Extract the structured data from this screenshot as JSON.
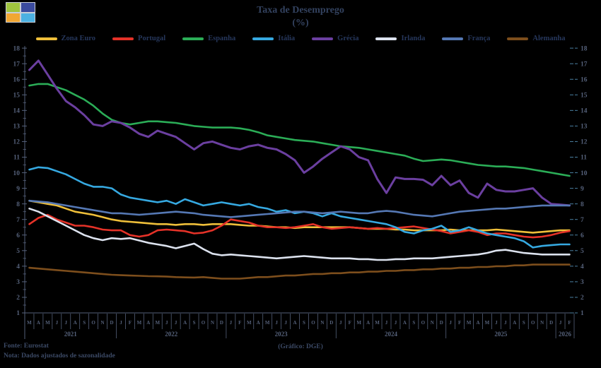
{
  "logo": {
    "colors": {
      "top_left": "#9fc43e",
      "top_right": "#3b4b9f",
      "bottom_left": "#f1a733",
      "bottom_right": "#4cb1e2"
    }
  },
  "title": {
    "line1": "Taxa de Desemprego",
    "line2": "(%)"
  },
  "colors": {
    "background": "#000000",
    "text": "#55617a",
    "title_text": "#33425f",
    "legend_text": "#26375c",
    "right_axis_text": "#4a7fa0"
  },
  "footer": {
    "source": "Fonte: Eurostat",
    "note": "Nota: Dados ajustados de sazonalidade",
    "credit": "(Gráfico: DGE)"
  },
  "chart_data": {
    "type": "line",
    "title": "Taxa de Desemprego (%)",
    "ylabel": "",
    "xlabel": "",
    "ylim": [
      1,
      18
    ],
    "y_tick_step": 1,
    "grid": false,
    "legend_position": "top",
    "x_months": [
      "M",
      "A",
      "M",
      "J",
      "J",
      "A",
      "S",
      "O",
      "N",
      "D",
      "J",
      "F",
      "M",
      "A",
      "M",
      "J",
      "J",
      "A",
      "S",
      "O",
      "N",
      "D",
      "J",
      "F",
      "M",
      "A",
      "M",
      "J",
      "J",
      "A",
      "S",
      "O",
      "N",
      "D",
      "J",
      "F",
      "M",
      "A",
      "M",
      "J",
      "J",
      "A",
      "S",
      "O",
      "N",
      "D",
      "J",
      "F",
      "M",
      "A",
      "M",
      "J",
      "J",
      "A",
      "S",
      "O",
      "N",
      "D",
      "J",
      "F"
    ],
    "years": [
      {
        "label": "2021",
        "from": 0,
        "to": 9
      },
      {
        "label": "2022",
        "from": 10,
        "to": 21
      },
      {
        "label": "2023",
        "from": 22,
        "to": 33
      },
      {
        "label": "2024",
        "from": 34,
        "to": 45
      },
      {
        "label": "2025",
        "from": 46,
        "to": 57
      },
      {
        "label": "2026",
        "from": 58,
        "to": 59
      }
    ],
    "series": [
      {
        "name": "Zona Euro",
        "color": "#efbf3a",
        "values": [
          8.2,
          8.1,
          8.0,
          7.9,
          7.7,
          7.5,
          7.4,
          7.3,
          7.15,
          7.0,
          6.9,
          6.85,
          6.8,
          6.75,
          6.7,
          6.7,
          6.65,
          6.7,
          6.7,
          6.65,
          6.7,
          6.7,
          6.7,
          6.65,
          6.6,
          6.6,
          6.55,
          6.5,
          6.5,
          6.45,
          6.5,
          6.5,
          6.5,
          6.5,
          6.5,
          6.5,
          6.45,
          6.4,
          6.4,
          6.4,
          6.35,
          6.35,
          6.3,
          6.3,
          6.3,
          6.3,
          6.35,
          6.3,
          6.3,
          6.3,
          6.3,
          6.35,
          6.3,
          6.25,
          6.2,
          6.15,
          6.2,
          6.25,
          6.3,
          6.3
        ]
      },
      {
        "name": "Portugal",
        "color": "#e53228",
        "values": [
          6.7,
          7.1,
          7.3,
          7.0,
          6.8,
          6.6,
          6.6,
          6.5,
          6.35,
          6.3,
          6.3,
          6.0,
          5.9,
          6.0,
          6.3,
          6.35,
          6.3,
          6.25,
          6.1,
          6.15,
          6.3,
          6.6,
          7.0,
          6.9,
          6.8,
          6.6,
          6.5,
          6.5,
          6.45,
          6.5,
          6.6,
          6.7,
          6.5,
          6.4,
          6.45,
          6.5,
          6.45,
          6.4,
          6.45,
          6.4,
          6.45,
          6.5,
          6.55,
          6.45,
          6.35,
          6.25,
          6.1,
          6.2,
          6.3,
          6.2,
          6.0,
          6.1,
          6.1,
          6.0,
          5.9,
          5.85,
          5.9,
          6.0,
          6.15,
          6.25
        ]
      },
      {
        "name": "Espanha",
        "color": "#2bad57",
        "values": [
          15.6,
          15.7,
          15.7,
          15.5,
          15.3,
          15.0,
          14.7,
          14.3,
          13.8,
          13.4,
          13.2,
          13.1,
          13.2,
          13.3,
          13.3,
          13.25,
          13.2,
          13.1,
          13.0,
          12.95,
          12.9,
          12.9,
          12.9,
          12.85,
          12.75,
          12.6,
          12.4,
          12.3,
          12.2,
          12.1,
          12.05,
          12.0,
          11.9,
          11.8,
          11.7,
          11.65,
          11.6,
          11.5,
          11.4,
          11.3,
          11.2,
          11.1,
          10.9,
          10.75,
          10.8,
          10.85,
          10.8,
          10.7,
          10.6,
          10.5,
          10.45,
          10.4,
          10.4,
          10.35,
          10.3,
          10.2,
          10.1,
          10.0,
          9.9,
          9.8
        ]
      },
      {
        "name": "Itália",
        "color": "#36a9e1",
        "values": [
          10.2,
          10.35,
          10.3,
          10.1,
          9.9,
          9.6,
          9.3,
          9.1,
          9.1,
          9.0,
          8.6,
          8.4,
          8.3,
          8.2,
          8.1,
          8.2,
          8.0,
          8.3,
          8.1,
          7.9,
          8.0,
          8.1,
          8.0,
          7.9,
          8.0,
          7.8,
          7.7,
          7.5,
          7.6,
          7.4,
          7.5,
          7.4,
          7.2,
          7.4,
          7.2,
          7.1,
          7.0,
          6.9,
          6.8,
          6.7,
          6.5,
          6.2,
          6.1,
          6.3,
          6.4,
          6.6,
          6.2,
          6.3,
          6.5,
          6.3,
          6.1,
          6.0,
          5.9,
          5.8,
          5.6,
          5.2,
          5.3,
          5.35,
          5.4,
          5.4
        ]
      },
      {
        "name": "Grécia",
        "color": "#6b3fa0",
        "values": [
          16.6,
          17.2,
          16.3,
          15.4,
          14.6,
          14.2,
          13.7,
          13.1,
          13.0,
          13.3,
          13.2,
          12.9,
          12.5,
          12.3,
          12.7,
          12.5,
          12.3,
          11.9,
          11.5,
          11.9,
          12.0,
          11.8,
          11.6,
          11.5,
          11.7,
          11.8,
          11.6,
          11.5,
          11.2,
          10.8,
          10.0,
          10.4,
          10.9,
          11.3,
          11.7,
          11.5,
          11.0,
          10.8,
          9.6,
          8.7,
          9.7,
          9.6,
          9.6,
          9.55,
          9.2,
          9.8,
          9.2,
          9.5,
          8.7,
          8.4,
          9.3,
          8.9,
          8.8,
          8.8,
          8.9,
          9.0,
          8.4,
          8.0,
          7.95,
          7.9
        ]
      },
      {
        "name": "Irlanda",
        "color": "#dce2ee",
        "values": [
          7.7,
          7.5,
          7.2,
          6.9,
          6.6,
          6.3,
          6.0,
          5.8,
          5.67,
          5.8,
          5.75,
          5.8,
          5.65,
          5.5,
          5.4,
          5.3,
          5.15,
          5.3,
          5.45,
          5.1,
          4.8,
          4.7,
          4.75,
          4.7,
          4.65,
          4.6,
          4.55,
          4.5,
          4.55,
          4.6,
          4.65,
          4.6,
          4.55,
          4.5,
          4.5,
          4.5,
          4.45,
          4.45,
          4.4,
          4.4,
          4.45,
          4.45,
          4.5,
          4.5,
          4.5,
          4.55,
          4.6,
          4.65,
          4.7,
          4.75,
          4.85,
          5.0,
          5.05,
          4.95,
          4.85,
          4.8,
          4.75,
          4.75,
          4.75,
          4.75
        ]
      },
      {
        "name": "França",
        "color": "#5578b4",
        "values": [
          8.2,
          8.15,
          8.1,
          8.0,
          7.9,
          7.8,
          7.7,
          7.6,
          7.5,
          7.4,
          7.4,
          7.35,
          7.3,
          7.35,
          7.4,
          7.45,
          7.5,
          7.45,
          7.4,
          7.3,
          7.25,
          7.2,
          7.15,
          7.2,
          7.25,
          7.3,
          7.35,
          7.4,
          7.45,
          7.5,
          7.5,
          7.45,
          7.4,
          7.45,
          7.5,
          7.45,
          7.4,
          7.4,
          7.5,
          7.55,
          7.5,
          7.4,
          7.3,
          7.25,
          7.2,
          7.3,
          7.4,
          7.5,
          7.55,
          7.6,
          7.65,
          7.7,
          7.7,
          7.75,
          7.8,
          7.85,
          7.9,
          7.9,
          7.9,
          7.9
        ]
      },
      {
        "name": "Alemanha",
        "color": "#7d4e1c",
        "values": [
          3.9,
          3.85,
          3.8,
          3.75,
          3.7,
          3.65,
          3.6,
          3.55,
          3.5,
          3.45,
          3.42,
          3.4,
          3.38,
          3.36,
          3.35,
          3.33,
          3.3,
          3.28,
          3.27,
          3.3,
          3.25,
          3.2,
          3.2,
          3.2,
          3.25,
          3.3,
          3.3,
          3.35,
          3.4,
          3.4,
          3.45,
          3.5,
          3.5,
          3.55,
          3.55,
          3.6,
          3.6,
          3.65,
          3.65,
          3.7,
          3.7,
          3.75,
          3.75,
          3.8,
          3.8,
          3.85,
          3.85,
          3.9,
          3.9,
          3.95,
          3.95,
          4.0,
          4.0,
          4.05,
          4.05,
          4.1,
          4.1,
          4.1,
          4.1,
          4.1
        ]
      }
    ]
  }
}
